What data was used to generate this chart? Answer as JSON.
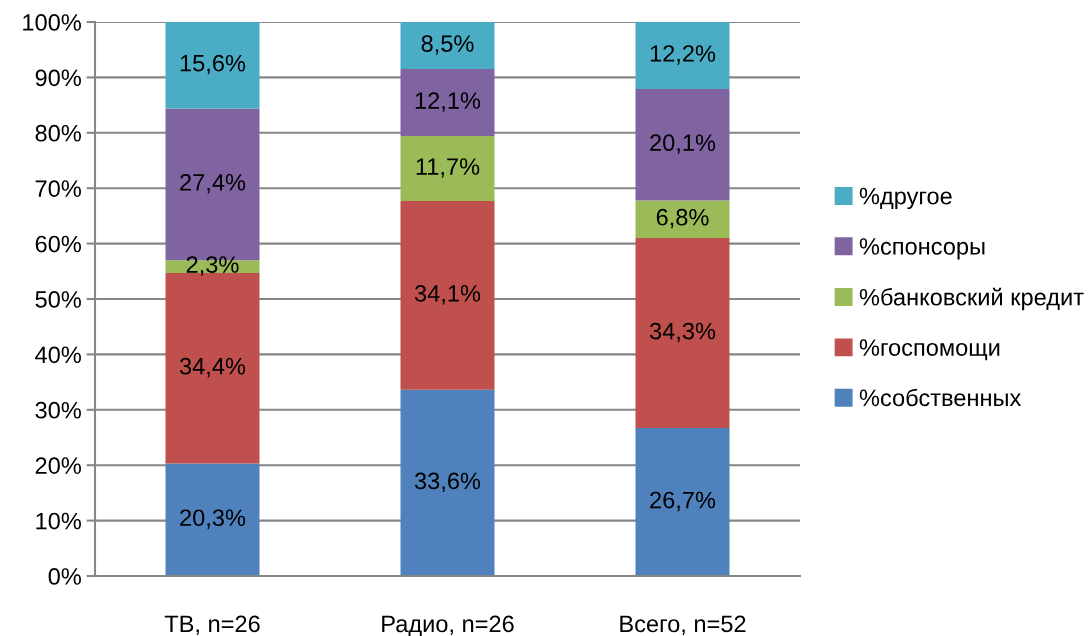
{
  "chart_data": {
    "type": "bar",
    "stacked": true,
    "categories": [
      "ТВ, n=26",
      "Радио, n=26",
      "Всего, n=52"
    ],
    "series": [
      {
        "name": "%собственных",
        "color": "#4f81bd",
        "values": [
          20.3,
          33.6,
          26.7
        ],
        "value_labels": [
          "20,3%",
          "33,6%",
          "26,7%"
        ]
      },
      {
        "name": "%госпомощи",
        "color": "#c0504d",
        "values": [
          34.4,
          34.1,
          34.3
        ],
        "value_labels": [
          "34,4%",
          "34,1%",
          "34,3%"
        ]
      },
      {
        "name": "%банковский кредит",
        "color": "#9bbb59",
        "values": [
          2.3,
          11.7,
          6.8
        ],
        "value_labels": [
          "2,3%",
          "11,7%",
          "6,8%"
        ]
      },
      {
        "name": "%спонсоры",
        "color": "#8064a2",
        "values": [
          27.4,
          12.1,
          20.1
        ],
        "value_labels": [
          "27,4%",
          "12,1%",
          "20,1%"
        ]
      },
      {
        "name": "%другое",
        "color": "#4bacc6",
        "values": [
          15.6,
          8.5,
          12.2
        ],
        "value_labels": [
          "15,6%",
          "8,5%",
          "12,2%"
        ]
      }
    ],
    "ylim": [
      0,
      100
    ],
    "yticks": [
      {
        "value": 0,
        "label": "0%"
      },
      {
        "value": 10,
        "label": "10%"
      },
      {
        "value": 20,
        "label": "20%"
      },
      {
        "value": 30,
        "label": "30%"
      },
      {
        "value": 40,
        "label": "40%"
      },
      {
        "value": 50,
        "label": "50%"
      },
      {
        "value": 60,
        "label": "60%"
      },
      {
        "value": 70,
        "label": "70%"
      },
      {
        "value": 80,
        "label": "80%"
      },
      {
        "value": 90,
        "label": "90%"
      },
      {
        "value": 100,
        "label": "100%"
      }
    ],
    "grid": "y",
    "legend": "right"
  }
}
